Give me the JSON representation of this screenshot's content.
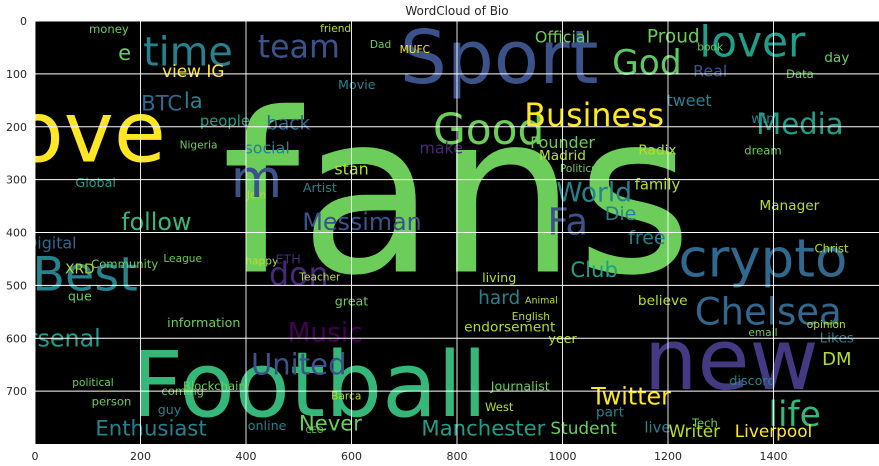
{
  "chart_data": {
    "type": "wordcloud",
    "title": "WordCloud of Bio",
    "xlabel": "",
    "ylabel": "",
    "xlim": [
      0,
      1600
    ],
    "ylim": [
      800,
      0
    ],
    "x_ticks": [
      0,
      200,
      400,
      600,
      800,
      1000,
      1200,
      1400
    ],
    "y_ticks": [
      0,
      100,
      200,
      300,
      400,
      500,
      600,
      700
    ],
    "grid": true,
    "background": "#000000",
    "grid_color": "#ffffff",
    "words": [
      {
        "text": "fans",
        "x": 800,
        "y": 330,
        "size": 420,
        "color": "#6ccd5a"
      },
      {
        "text": "Football",
        "x": 520,
        "y": 690,
        "size": 170,
        "color": "#35b779"
      },
      {
        "text": "Sport",
        "x": 880,
        "y": 70,
        "size": 140,
        "color": "#3b528b"
      },
      {
        "text": "new",
        "x": 1320,
        "y": 640,
        "size": 160,
        "color": "#443983"
      },
      {
        "text": "love",
        "x": 80,
        "y": 210,
        "size": 160,
        "color": "#fde725"
      },
      {
        "text": "crypto",
        "x": 1380,
        "y": 450,
        "size": 100,
        "color": "#31688e"
      },
      {
        "text": "Best",
        "x": 95,
        "y": 480,
        "size": 90,
        "color": "#26828e"
      },
      {
        "text": "lover",
        "x": 1360,
        "y": 40,
        "size": 80,
        "color": "#1f9e89"
      },
      {
        "text": "Good",
        "x": 860,
        "y": 205,
        "size": 80,
        "color": "#6ccd5a"
      },
      {
        "text": "Business",
        "x": 1060,
        "y": 180,
        "size": 60,
        "color": "#fde725"
      },
      {
        "text": "time",
        "x": 290,
        "y": 60,
        "size": 75,
        "color": "#26828e"
      },
      {
        "text": "team",
        "x": 500,
        "y": 50,
        "size": 60,
        "color": "#3b528b"
      },
      {
        "text": "God",
        "x": 1160,
        "y": 80,
        "size": 65,
        "color": "#5ec962"
      },
      {
        "text": "Chelsea",
        "x": 1390,
        "y": 550,
        "size": 70,
        "color": "#31688e"
      },
      {
        "text": "life",
        "x": 1440,
        "y": 745,
        "size": 65,
        "color": "#35b779"
      },
      {
        "text": "Media",
        "x": 1450,
        "y": 195,
        "size": 55,
        "color": "#1f9e89"
      },
      {
        "text": "World",
        "x": 1060,
        "y": 325,
        "size": 50,
        "color": "#26828e"
      },
      {
        "text": "Messiman",
        "x": 620,
        "y": 380,
        "size": 45,
        "color": "#3b528b"
      },
      {
        "text": "Music",
        "x": 550,
        "y": 590,
        "size": 50,
        "color": "#440154"
      },
      {
        "text": "United",
        "x": 500,
        "y": 650,
        "size": 55,
        "color": "#3b528b"
      },
      {
        "text": "Twitter",
        "x": 1130,
        "y": 710,
        "size": 45,
        "color": "#fde725"
      },
      {
        "text": "Manchester",
        "x": 850,
        "y": 770,
        "size": 40,
        "color": "#1f9e89"
      },
      {
        "text": "Enthusiast",
        "x": 220,
        "y": 770,
        "size": 40,
        "color": "#26828e"
      },
      {
        "text": "Never",
        "x": 560,
        "y": 760,
        "size": 40,
        "color": "#6ccd5a"
      },
      {
        "text": "Liverpool",
        "x": 1400,
        "y": 775,
        "size": 32,
        "color": "#fde725"
      },
      {
        "text": "Writer",
        "x": 1250,
        "y": 775,
        "size": 32,
        "color": "#b5de2b"
      },
      {
        "text": "don",
        "x": 500,
        "y": 480,
        "size": 60,
        "color": "#482878"
      },
      {
        "text": "follow",
        "x": 230,
        "y": 380,
        "size": 45,
        "color": "#35b779"
      },
      {
        "text": "Arsenal",
        "x": 40,
        "y": 600,
        "size": 45,
        "color": "#1f9e89"
      },
      {
        "text": "BTC",
        "x": 240,
        "y": 155,
        "size": 40,
        "color": "#31688e"
      },
      {
        "text": "view IG",
        "x": 300,
        "y": 95,
        "size": 32,
        "color": "#fde725"
      },
      {
        "text": "MUFC",
        "x": 720,
        "y": 55,
        "size": 20,
        "color": "#fde725"
      },
      {
        "text": "Official",
        "x": 1000,
        "y": 30,
        "size": 30,
        "color": "#6ccd5a"
      },
      {
        "text": "Proud",
        "x": 1210,
        "y": 30,
        "size": 35,
        "color": "#6ccd5a"
      },
      {
        "text": "Founder",
        "x": 1000,
        "y": 230,
        "size": 30,
        "color": "#6ccd5a"
      },
      {
        "text": "Madrid",
        "x": 1000,
        "y": 255,
        "size": 26,
        "color": "#b5de2b"
      },
      {
        "text": "family",
        "x": 1180,
        "y": 310,
        "size": 28,
        "color": "#b5de2b"
      },
      {
        "text": "social",
        "x": 440,
        "y": 240,
        "size": 30,
        "color": "#26828e"
      },
      {
        "text": "back",
        "x": 480,
        "y": 195,
        "size": 35,
        "color": "#31688e"
      },
      {
        "text": "stan",
        "x": 600,
        "y": 280,
        "size": 30,
        "color": "#b5de2b"
      },
      {
        "text": "make",
        "x": 770,
        "y": 240,
        "size": 30,
        "color": "#482878"
      },
      {
        "text": "hard",
        "x": 880,
        "y": 525,
        "size": 35,
        "color": "#26828e"
      },
      {
        "text": "living",
        "x": 880,
        "y": 485,
        "size": 24,
        "color": "#b5de2b"
      },
      {
        "text": "Die",
        "x": 1110,
        "y": 365,
        "size": 36,
        "color": "#26828e"
      },
      {
        "text": "Student",
        "x": 1040,
        "y": 770,
        "size": 32,
        "color": "#6ccd5a"
      },
      {
        "text": "people",
        "x": 360,
        "y": 190,
        "size": 28,
        "color": "#1f9e89"
      },
      {
        "text": "Global",
        "x": 115,
        "y": 305,
        "size": 24,
        "color": "#1f9e89"
      },
      {
        "text": "Digital",
        "x": 30,
        "y": 420,
        "size": 30,
        "color": "#31688e"
      },
      {
        "text": "XRD",
        "x": 85,
        "y": 470,
        "size": 26,
        "color": "#b5de2b"
      },
      {
        "text": "que",
        "x": 85,
        "y": 520,
        "size": 24,
        "color": "#6ccd5a"
      },
      {
        "text": "information",
        "x": 320,
        "y": 570,
        "size": 24,
        "color": "#6ccd5a"
      },
      {
        "text": "Blockchain",
        "x": 340,
        "y": 690,
        "size": 22,
        "color": "#6ccd5a"
      },
      {
        "text": "Journalist",
        "x": 920,
        "y": 690,
        "size": 24,
        "color": "#6ccd5a"
      },
      {
        "text": "endorsement",
        "x": 900,
        "y": 580,
        "size": 26,
        "color": "#b5de2b"
      },
      {
        "text": "Club",
        "x": 1060,
        "y": 470,
        "size": 40,
        "color": "#1f9e89"
      },
      {
        "text": "free",
        "x": 1160,
        "y": 410,
        "size": 36,
        "color": "#26828e"
      },
      {
        "text": "believe",
        "x": 1190,
        "y": 530,
        "size": 26,
        "color": "#b5de2b"
      },
      {
        "text": "tweet",
        "x": 1240,
        "y": 150,
        "size": 30,
        "color": "#26828e"
      },
      {
        "text": "Manager",
        "x": 1430,
        "y": 350,
        "size": 26,
        "color": "#b5de2b"
      },
      {
        "text": "DM",
        "x": 1520,
        "y": 640,
        "size": 34,
        "color": "#b5de2b"
      },
      {
        "text": "Likes",
        "x": 1520,
        "y": 600,
        "size": 26,
        "color": "#26828e"
      },
      {
        "text": "win",
        "x": 1380,
        "y": 185,
        "size": 26,
        "color": "#26828e"
      },
      {
        "text": "Real",
        "x": 1280,
        "y": 95,
        "size": 30,
        "color": "#3b528b"
      },
      {
        "text": "Radix",
        "x": 1180,
        "y": 245,
        "size": 26,
        "color": "#b5de2b"
      },
      {
        "text": "Artist",
        "x": 540,
        "y": 315,
        "size": 24,
        "color": "#26828e"
      },
      {
        "text": "happy",
        "x": 430,
        "y": 455,
        "size": 20,
        "color": "#b5de2b"
      },
      {
        "text": "great",
        "x": 600,
        "y": 530,
        "size": 24,
        "color": "#6ccd5a"
      },
      {
        "text": "Politics",
        "x": 1030,
        "y": 280,
        "size": 20,
        "color": "#6ccd5a"
      },
      {
        "text": "Nigeria",
        "x": 310,
        "y": 235,
        "size": 20,
        "color": "#6ccd5a"
      },
      {
        "text": "friend",
        "x": 570,
        "y": 15,
        "size": 20,
        "color": "#b5de2b"
      },
      {
        "text": "Dad",
        "x": 655,
        "y": 45,
        "size": 20,
        "color": "#6ccd5a"
      },
      {
        "text": "money",
        "x": 140,
        "y": 15,
        "size": 22,
        "color": "#6ccd5a"
      },
      {
        "text": "Movie",
        "x": 610,
        "y": 120,
        "size": 24,
        "color": "#26828e"
      },
      {
        "text": "yeer",
        "x": 1000,
        "y": 600,
        "size": 24,
        "color": "#b5de2b"
      },
      {
        "text": "guy",
        "x": 255,
        "y": 735,
        "size": 24,
        "color": "#26828e"
      },
      {
        "text": "coming",
        "x": 280,
        "y": 700,
        "size": 22,
        "color": "#6ccd5a"
      },
      {
        "text": "person",
        "x": 145,
        "y": 720,
        "size": 22,
        "color": "#6ccd5a"
      },
      {
        "text": "online",
        "x": 440,
        "y": 765,
        "size": 24,
        "color": "#26828e"
      },
      {
        "text": "part",
        "x": 1090,
        "y": 740,
        "size": 26,
        "color": "#26828e"
      },
      {
        "text": "live",
        "x": 1180,
        "y": 770,
        "size": 28,
        "color": "#26828e"
      },
      {
        "text": "political",
        "x": 110,
        "y": 685,
        "size": 20,
        "color": "#6ccd5a"
      },
      {
        "text": "Teacher",
        "x": 540,
        "y": 485,
        "size": 20,
        "color": "#b5de2b"
      },
      {
        "text": "discord",
        "x": 1360,
        "y": 680,
        "size": 24,
        "color": "#26828e"
      },
      {
        "text": "email",
        "x": 1380,
        "y": 590,
        "size": 20,
        "color": "#6ccd5a"
      },
      {
        "text": "Christ",
        "x": 1510,
        "y": 430,
        "size": 22,
        "color": "#b5de2b"
      },
      {
        "text": "opinion",
        "x": 1500,
        "y": 575,
        "size": 20,
        "color": "#b5de2b"
      },
      {
        "text": "Data",
        "x": 1450,
        "y": 100,
        "size": 22,
        "color": "#6ccd5a"
      },
      {
        "text": "day",
        "x": 1520,
        "y": 70,
        "size": 26,
        "color": "#6ccd5a"
      },
      {
        "text": "dream",
        "x": 1380,
        "y": 245,
        "size": 22,
        "color": "#6ccd5a"
      },
      {
        "text": "Join",
        "x": 420,
        "y": 330,
        "size": 20,
        "color": "#b5de2b"
      },
      {
        "text": "League",
        "x": 280,
        "y": 450,
        "size": 20,
        "color": "#6ccd5a"
      },
      {
        "text": "Community",
        "x": 170,
        "y": 460,
        "size": 22,
        "color": "#6ccd5a"
      },
      {
        "text": "Barca",
        "x": 590,
        "y": 710,
        "size": 20,
        "color": "#b5de2b"
      },
      {
        "text": "CEO",
        "x": 530,
        "y": 775,
        "size": 16,
        "color": "#6ccd5a"
      },
      {
        "text": "West",
        "x": 880,
        "y": 730,
        "size": 22,
        "color": "#b5de2b"
      },
      {
        "text": "Tech",
        "x": 1270,
        "y": 760,
        "size": 22,
        "color": "#6ccd5a"
      },
      {
        "text": "book",
        "x": 1280,
        "y": 50,
        "size": 20,
        "color": "#6ccd5a"
      },
      {
        "text": "la",
        "x": 300,
        "y": 150,
        "size": 40,
        "color": "#26828e"
      },
      {
        "text": "Fa",
        "x": 1010,
        "y": 380,
        "size": 70,
        "color": "#3b528b"
      },
      {
        "text": "m",
        "x": 420,
        "y": 300,
        "size": 100,
        "color": "#3b528b"
      },
      {
        "text": "e",
        "x": 170,
        "y": 60,
        "size": 40,
        "color": "#6ccd5a"
      },
      {
        "text": "ETH",
        "x": 480,
        "y": 450,
        "size": 24,
        "color": "#482878"
      },
      {
        "text": "English",
        "x": 940,
        "y": 560,
        "size": 20,
        "color": "#b5de2b"
      },
      {
        "text": "Animal",
        "x": 960,
        "y": 530,
        "size": 18,
        "color": "#b5de2b"
      }
    ]
  }
}
